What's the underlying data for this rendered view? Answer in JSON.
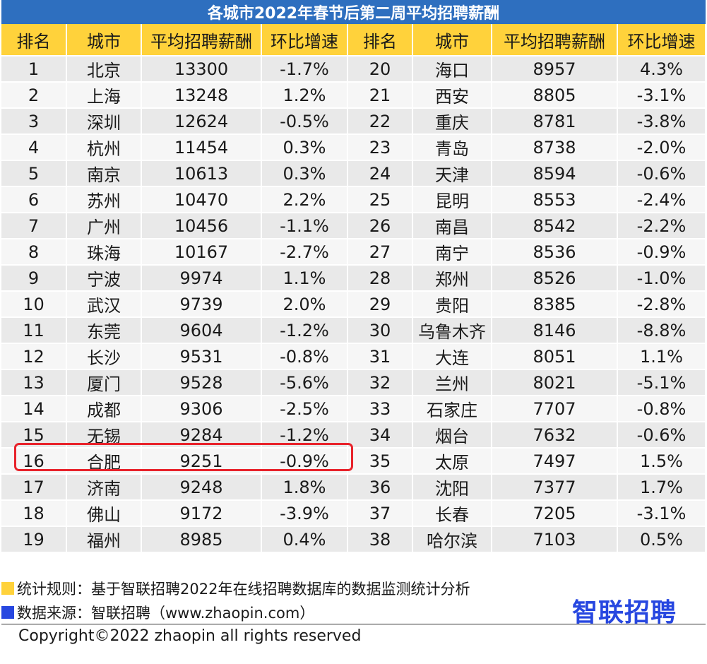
{
  "title": "各城市2022年春节后第二周平均招聘薪酬",
  "columns": [
    "排名",
    "城市",
    "平均招聘薪酬",
    "环比增速",
    "排名",
    "城市",
    "平均招聘薪酬",
    "环比增速"
  ],
  "chart_data": {
    "type": "table",
    "title": "各城市2022年春节后第二周平均招聘薪酬",
    "columns": [
      "排名",
      "城市",
      "平均招聘薪酬",
      "环比增速"
    ],
    "highlighted_rank": 16,
    "rows": [
      {
        "rank": "1",
        "city": "北京",
        "salary": "13300",
        "growth": "-1.7%"
      },
      {
        "rank": "2",
        "city": "上海",
        "salary": "13248",
        "growth": "1.2%"
      },
      {
        "rank": "3",
        "city": "深圳",
        "salary": "12624",
        "growth": "-0.5%"
      },
      {
        "rank": "4",
        "city": "杭州",
        "salary": "11454",
        "growth": "0.3%"
      },
      {
        "rank": "5",
        "city": "南京",
        "salary": "10613",
        "growth": "0.3%"
      },
      {
        "rank": "6",
        "city": "苏州",
        "salary": "10470",
        "growth": "2.2%"
      },
      {
        "rank": "7",
        "city": "广州",
        "salary": "10456",
        "growth": "-1.1%"
      },
      {
        "rank": "8",
        "city": "珠海",
        "salary": "10167",
        "growth": "-2.7%"
      },
      {
        "rank": "9",
        "city": "宁波",
        "salary": "9974",
        "growth": "1.1%"
      },
      {
        "rank": "10",
        "city": "武汉",
        "salary": "9739",
        "growth": "2.0%"
      },
      {
        "rank": "11",
        "city": "东莞",
        "salary": "9604",
        "growth": "-1.2%"
      },
      {
        "rank": "12",
        "city": "长沙",
        "salary": "9531",
        "growth": "-0.8%"
      },
      {
        "rank": "13",
        "city": "厦门",
        "salary": "9528",
        "growth": "-5.6%"
      },
      {
        "rank": "14",
        "city": "成都",
        "salary": "9306",
        "growth": "-2.5%"
      },
      {
        "rank": "15",
        "city": "无锡",
        "salary": "9284",
        "growth": "-1.2%"
      },
      {
        "rank": "16",
        "city": "合肥",
        "salary": "9251",
        "growth": "-0.9%"
      },
      {
        "rank": "17",
        "city": "济南",
        "salary": "9248",
        "growth": "1.8%"
      },
      {
        "rank": "18",
        "city": "佛山",
        "salary": "9172",
        "growth": "-3.9%"
      },
      {
        "rank": "19",
        "city": "福州",
        "salary": "8985",
        "growth": "0.4%"
      },
      {
        "rank": "20",
        "city": "海口",
        "salary": "8957",
        "growth": "4.3%"
      },
      {
        "rank": "21",
        "city": "西安",
        "salary": "8805",
        "growth": "-3.1%"
      },
      {
        "rank": "22",
        "city": "重庆",
        "salary": "8781",
        "growth": "-3.8%"
      },
      {
        "rank": "23",
        "city": "青岛",
        "salary": "8738",
        "growth": "-2.0%"
      },
      {
        "rank": "24",
        "city": "天津",
        "salary": "8594",
        "growth": "-0.6%"
      },
      {
        "rank": "25",
        "city": "昆明",
        "salary": "8553",
        "growth": "-2.4%"
      },
      {
        "rank": "26",
        "city": "南昌",
        "salary": "8542",
        "growth": "-2.2%"
      },
      {
        "rank": "27",
        "city": "南宁",
        "salary": "8536",
        "growth": "-0.9%"
      },
      {
        "rank": "28",
        "city": "郑州",
        "salary": "8526",
        "growth": "-1.0%"
      },
      {
        "rank": "29",
        "city": "贵阳",
        "salary": "8385",
        "growth": "-2.8%"
      },
      {
        "rank": "30",
        "city": "乌鲁木齐",
        "salary": "8146",
        "growth": "-8.8%"
      },
      {
        "rank": "31",
        "city": "大连",
        "salary": "8051",
        "growth": "1.1%"
      },
      {
        "rank": "32",
        "city": "兰州",
        "salary": "8021",
        "growth": "-5.1%"
      },
      {
        "rank": "33",
        "city": "石家庄",
        "salary": "7707",
        "growth": "-0.8%"
      },
      {
        "rank": "34",
        "city": "烟台",
        "salary": "7632",
        "growth": "-0.6%"
      },
      {
        "rank": "35",
        "city": "太原",
        "salary": "7497",
        "growth": "1.5%"
      },
      {
        "rank": "36",
        "city": "沈阳",
        "salary": "7377",
        "growth": "1.7%"
      },
      {
        "rank": "37",
        "city": "长春",
        "salary": "7205",
        "growth": "-3.1%"
      },
      {
        "rank": "38",
        "city": "哈尔滨",
        "salary": "7103",
        "growth": "0.5%"
      }
    ]
  },
  "footer": {
    "rule_note": "统计规则：基于智联招聘2022年在线招聘数据库的数据监测统计分析",
    "source_note": "数据来源：智联招聘（www.zhaopin.com）",
    "logo_text": "智联招聘",
    "copyright": "Copyright©2022 zhaopin all rights reserved"
  },
  "colors": {
    "title_bg": "#2e6fbf",
    "header_bg": "#ffd23b",
    "highlight_border": "#e8232b",
    "logo": "#2747e0"
  }
}
